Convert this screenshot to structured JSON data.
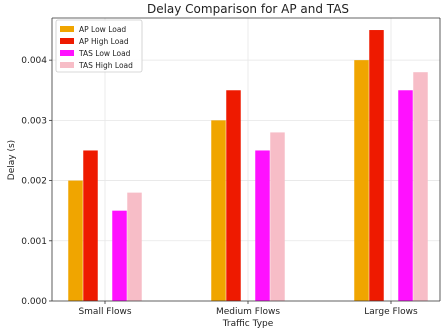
{
  "chart_data": {
    "type": "bar",
    "title": "Delay Comparison for AP and TAS",
    "xlabel": "Traffic Type",
    "ylabel": "Delay (s)",
    "categories": [
      "Small Flows",
      "Medium Flows",
      "Large Flows"
    ],
    "ylim": [
      0,
      0.0047
    ],
    "yticks": [
      "0.000",
      "0.001",
      "0.002",
      "0.003",
      "0.004"
    ],
    "grid": true,
    "legend_position": "top-left",
    "series": [
      {
        "name": "AP Low Load",
        "color": "#f0a500",
        "values": [
          0.002,
          0.003,
          0.004
        ]
      },
      {
        "name": "AP High Load",
        "color": "#ee1a00",
        "values": [
          0.0025,
          0.0035,
          0.0045
        ]
      },
      {
        "name": "TAS Low Load",
        "color": "#ff11ff",
        "values": [
          0.0015,
          0.0025,
          0.0035
        ]
      },
      {
        "name": "TAS High Load",
        "color": "#f7bdc7",
        "values": [
          0.0018,
          0.0028,
          0.0038
        ]
      }
    ]
  }
}
